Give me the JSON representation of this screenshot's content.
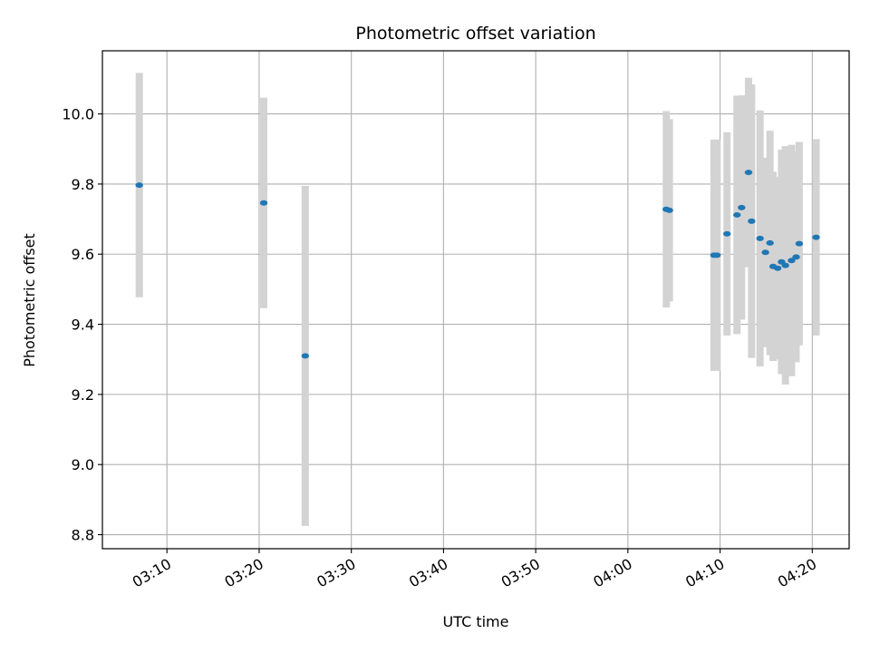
{
  "chart_data": {
    "type": "scatter",
    "title": "Photometric offset variation",
    "xlabel": "UTC time",
    "ylabel": "Photometric offset",
    "xlim": [
      "03:03",
      "04:24"
    ],
    "ylim": [
      8.76,
      10.18
    ],
    "grid": true,
    "x_ticks": [
      "03:10",
      "03:20",
      "03:30",
      "03:40",
      "03:50",
      "04:00",
      "04:10",
      "04:20"
    ],
    "y_ticks": [
      "8.8",
      "9.0",
      "9.2",
      "9.4",
      "9.6",
      "9.8",
      "10.0"
    ],
    "colors": {
      "point": "#1f77b4",
      "errorbar": "#d3d3d3",
      "grid": "#b0b0b0"
    },
    "series": [
      {
        "points": [
          {
            "x": "03:07:00",
            "y": 9.797,
            "err": 0.32
          },
          {
            "x": "03:20:30",
            "y": 9.746,
            "err": 0.3
          },
          {
            "x": "03:25:00",
            "y": 9.31,
            "err": 0.485
          },
          {
            "x": "04:04:10",
            "y": 9.728,
            "err": 0.28
          },
          {
            "x": "04:04:30",
            "y": 9.725,
            "err": 0.26
          },
          {
            "x": "04:09:20",
            "y": 9.597,
            "err": 0.33
          },
          {
            "x": "04:09:40",
            "y": 9.597,
            "err": 0.33
          },
          {
            "x": "04:10:45",
            "y": 9.658,
            "err": 0.29
          },
          {
            "x": "04:11:50",
            "y": 9.712,
            "err": 0.34
          },
          {
            "x": "04:12:20",
            "y": 9.733,
            "err": 0.32
          },
          {
            "x": "04:13:05",
            "y": 9.833,
            "err": 0.27
          },
          {
            "x": "04:13:25",
            "y": 9.694,
            "err": 0.39
          },
          {
            "x": "04:14:20",
            "y": 9.645,
            "err": 0.365
          },
          {
            "x": "04:14:55",
            "y": 9.605,
            "err": 0.27
          },
          {
            "x": "04:15:25",
            "y": 9.632,
            "err": 0.32
          },
          {
            "x": "04:15:45",
            "y": 9.565,
            "err": 0.27
          },
          {
            "x": "04:16:15",
            "y": 9.56,
            "err": 0.26
          },
          {
            "x": "04:16:40",
            "y": 9.578,
            "err": 0.32
          },
          {
            "x": "04:17:05",
            "y": 9.568,
            "err": 0.34
          },
          {
            "x": "04:17:45",
            "y": 9.582,
            "err": 0.33
          },
          {
            "x": "04:18:15",
            "y": 9.592,
            "err": 0.3
          },
          {
            "x": "04:18:35",
            "y": 9.63,
            "err": 0.29
          },
          {
            "x": "04:20:25",
            "y": 9.648,
            "err": 0.28
          }
        ]
      }
    ]
  }
}
